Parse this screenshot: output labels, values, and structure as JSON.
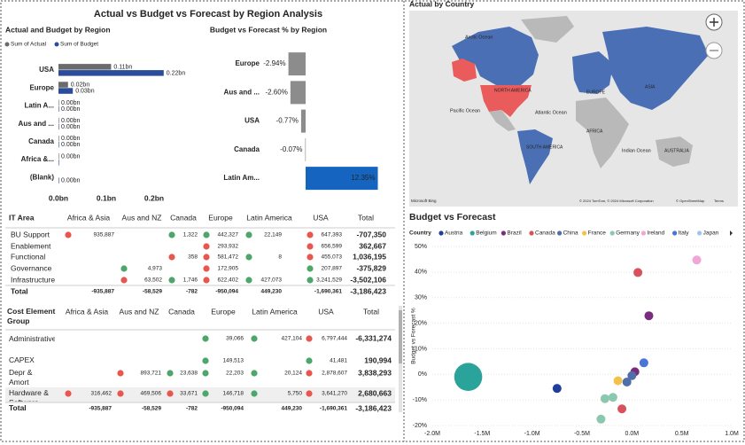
{
  "title": "Actual vs Budget vs Forecast by Region Analysis",
  "chart_data": [
    {
      "type": "bar",
      "title": "Actual and Budget by Region",
      "categories": [
        "USA",
        "Europe",
        "Latin A...",
        "Aus and ...",
        "Canada",
        "Africa &...",
        "(Blank)"
      ],
      "series": [
        {
          "name": "Sum of Actual",
          "color": "#6b6b6b",
          "values": [
            0.11,
            0.02,
            0.0,
            0.0,
            0.0,
            0.0,
            null
          ],
          "value_labels": [
            "0.11bn",
            "0.02bn",
            "0.00bn",
            "0.00bn",
            "0.00bn",
            "0.00bn",
            null
          ]
        },
        {
          "name": "Sum of Budget",
          "color": "#2b4c9a",
          "values": [
            0.22,
            0.03,
            0.0,
            0.0,
            0.0,
            0.0,
            0.0
          ],
          "value_labels": [
            "0.22bn",
            "0.03bn",
            "0.00bn",
            "0.00bn",
            "0.00bn",
            null,
            "0.00bn"
          ]
        }
      ],
      "xlim": [
        0,
        0.22
      ],
      "xticks": [
        {
          "value": 0,
          "label": "0.0bn"
        },
        {
          "value": 0.1,
          "label": "0.1bn"
        },
        {
          "value": 0.2,
          "label": "0.2bn"
        }
      ],
      "legend": "top-left"
    },
    {
      "type": "bar",
      "title": "Budget vs Forecast % by Region",
      "categories": [
        "Europe",
        "Aus and ...",
        "USA",
        "Canada",
        "Latin Am..."
      ],
      "values": [
        -2.94,
        -2.6,
        -0.77,
        -0.07,
        12.35
      ],
      "value_labels": [
        "-2.94%",
        "-2.60%",
        "-0.77%",
        "-0.07%",
        "12.35%"
      ],
      "colors": [
        "#8c8c8c",
        "#8c8c8c",
        "#8c8c8c",
        "#8c8c8c",
        "#1565c0"
      ],
      "xlim": [
        -3,
        12.5
      ]
    },
    {
      "type": "scatter",
      "title": "Budget vs Forecast",
      "y_label": "Budget vs Forecast %",
      "legend_title": "Country",
      "series": [
        {
          "name": "Austria",
          "color": "#1f3f9a",
          "x": [
            -750000
          ],
          "y": [
            -5.5
          ],
          "sizes": [
            1
          ]
        },
        {
          "name": "Belgium",
          "color": "#2aa39a",
          "x": [
            -1640000
          ],
          "y": [
            -1
          ],
          "sizes": [
            10
          ]
        },
        {
          "name": "Brazil",
          "color": "#7a2c7d",
          "x": [
            170000,
            30000
          ],
          "y": [
            22.9,
            1
          ],
          "sizes": [
            1,
            1
          ]
        },
        {
          "name": "Canada",
          "color": "#d9515a",
          "x": [
            60000,
            -100000
          ],
          "y": [
            39.8,
            -13.5
          ],
          "sizes": [
            1,
            1
          ]
        },
        {
          "name": "China",
          "color": "#4e6fa8",
          "x": [
            -50000,
            0
          ],
          "y": [
            -3,
            -0.5
          ],
          "sizes": [
            1,
            1
          ]
        },
        {
          "name": "France",
          "color": "#f2c14e",
          "x": [
            -140000
          ],
          "y": [
            -2.5
          ],
          "sizes": [
            1
          ]
        },
        {
          "name": "Germany",
          "color": "#8cc7b0",
          "x": [
            -190000,
            -270000,
            -310000
          ],
          "y": [
            -9,
            -9.5,
            -17.5
          ],
          "sizes": [
            1,
            1,
            1
          ]
        },
        {
          "name": "Ireland",
          "color": "#f0a6d6",
          "x": [
            650000
          ],
          "y": [
            44.7
          ],
          "sizes": [
            1
          ]
        },
        {
          "name": "Italy",
          "color": "#4a74d8",
          "x": [
            120000
          ],
          "y": [
            4.5
          ],
          "sizes": [
            1
          ]
        },
        {
          "name": "Japan",
          "color": "#9fc4ee",
          "x": [],
          "y": [],
          "sizes": []
        }
      ],
      "xlim": [
        -2000000,
        1000000
      ],
      "xticks": [
        {
          "value": -2000000,
          "label": "-2.0M"
        },
        {
          "value": -1500000,
          "label": "-1.5M"
        },
        {
          "value": -1000000,
          "label": "-1.0M"
        },
        {
          "value": -500000,
          "label": "-0.5M"
        },
        {
          "value": 0,
          "label": "0.0M"
        },
        {
          "value": 500000,
          "label": "0.5M"
        },
        {
          "value": 1000000,
          "label": "1.0M"
        }
      ],
      "ylim": [
        -20,
        50
      ],
      "yticks": [
        {
          "value": 50,
          "label": "50%"
        },
        {
          "value": 40,
          "label": "40%"
        },
        {
          "value": 30,
          "label": "30%"
        },
        {
          "value": 20,
          "label": "20%"
        },
        {
          "value": 10,
          "label": "10%"
        },
        {
          "value": 0,
          "label": "0%"
        },
        {
          "value": -10,
          "label": "-10%"
        },
        {
          "value": -20,
          "label": "-20%"
        }
      ],
      "grid": true
    }
  ],
  "map": {
    "title": "Actual by Country",
    "labels": [
      "Arctic Ocean",
      "NORTH AMERICA",
      "EUROPE",
      "ASIA",
      "Pacific Ocean",
      "Atlantic Ocean",
      "AFRICA",
      "SOUTH AMERICA",
      "Indian Ocean",
      "AUSTRALIA"
    ],
    "attribution": "© 2024 TomTom, © 2024 Microsoft Corporation",
    "osm": "© OpenStreetMap",
    "terms": "Terms",
    "logo": "Microsoft Bing"
  },
  "tables": [
    {
      "header": [
        "IT Area",
        "Africa & Asia",
        "Aus and NZ",
        "Canada",
        "Europe",
        "Latin America",
        "USA",
        "Total"
      ],
      "rows": [
        [
          "BU Support",
          "935,887",
          null,
          "1,322",
          "442,327",
          "22,149",
          "647,393",
          "-707,350"
        ],
        [
          "Enablement",
          null,
          null,
          null,
          "293,932",
          null,
          "656,599",
          "362,667"
        ],
        [
          "Functional",
          null,
          null,
          "358",
          "581,472",
          "8",
          "455,073",
          "1,036,195"
        ],
        [
          "Governance",
          null,
          "4,973",
          null,
          "172,905",
          null,
          "207,897",
          "-375,829"
        ],
        [
          "Infrastructure",
          null,
          "63,502",
          "1,746",
          "622,402",
          "427,073",
          "3,241,529",
          "-3,502,106"
        ],
        [
          "Total",
          "-935,887",
          "-58,529",
          "-782",
          "-950,094",
          "449,230",
          "-1,690,361",
          "-3,186,423"
        ]
      ],
      "icons": [
        [
          "#e8574f",
          null,
          "#4da66a",
          "#4da66a",
          "#4da66a",
          "#e8574f"
        ],
        [
          null,
          null,
          null,
          "#e8574f",
          null,
          "#e8574f"
        ],
        [
          null,
          null,
          "#e8574f",
          "#e8574f",
          "#4da66a",
          "#e8574f"
        ],
        [
          null,
          "#4da66a",
          null,
          "#e8574f",
          null,
          "#4da66a"
        ],
        [
          null,
          "#e8574f",
          "#4da66a",
          "#e8574f",
          "#4da66a",
          "#4da66a"
        ],
        [
          null,
          null,
          null,
          null,
          null,
          null
        ]
      ]
    },
    {
      "header": [
        "Cost Element Group",
        "Africa & Asia",
        "Aus and NZ",
        "Canada",
        "Europe",
        "Latin America",
        "USA",
        "Total"
      ],
      "rows": [
        [
          "Administrative",
          null,
          null,
          null,
          "39,066",
          "427,104",
          "6,797,444",
          "-6,331,274"
        ],
        [
          "CAPEX",
          null,
          null,
          null,
          "149,513",
          null,
          "41,481",
          "190,994"
        ],
        [
          "Depr & Amort",
          null,
          "893,721",
          "23,638",
          "22,203",
          "20,124",
          "2,878,607",
          "3,838,293"
        ],
        [
          "Hardware & Software",
          "316,462",
          "469,506",
          "33,671",
          "146,718",
          "5,750",
          "3,641,270",
          "2,680,663"
        ],
        [
          "Total",
          "-935,887",
          "-58,529",
          "-782",
          "-950,094",
          "449,230",
          "-1,690,361",
          "-3,186,423"
        ]
      ],
      "icons": [
        [
          null,
          null,
          null,
          "#4da66a",
          "#4da66a",
          "#e8574f"
        ],
        [
          null,
          null,
          null,
          "#4da66a",
          null,
          "#4da66a"
        ],
        [
          null,
          "#e8574f",
          "#4da66a",
          "#4da66a",
          "#4da66a",
          "#e8574f"
        ],
        [
          "#e8574f",
          "#e8574f",
          "#e8574f",
          "#4da66a",
          "#4da66a",
          "#e8574f"
        ],
        [
          null,
          null,
          null,
          null,
          null,
          null
        ]
      ]
    }
  ]
}
